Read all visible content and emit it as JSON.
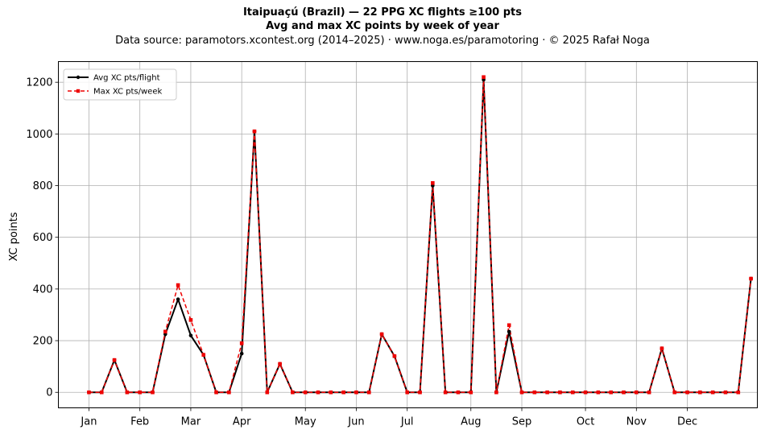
{
  "title_line1": "Itaipuaçú (Brazil)  —  22 PPG XC flights ≥100 pts",
  "title_line2": "Avg and max XC points by week of year",
  "title_line3": "Data source: paramotors.xcontest.org (2014–2025)  ·  www.noga.es/paramotoring  ·  © 2025 Rafał Noga",
  "chart_data": {
    "type": "line",
    "ylabel": "XC points",
    "xlabel": "",
    "ylim": [
      -60,
      1280
    ],
    "yticks": [
      0,
      200,
      400,
      600,
      800,
      1000,
      1200
    ],
    "xlim": [
      -1.4,
      53.5
    ],
    "month_ticks": [
      {
        "label": "Jan",
        "week": 1
      },
      {
        "label": "Feb",
        "week": 5
      },
      {
        "label": "Mar",
        "week": 9
      },
      {
        "label": "Apr",
        "week": 13
      },
      {
        "label": "May",
        "week": 18
      },
      {
        "label": "Jun",
        "week": 22
      },
      {
        "label": "Jul",
        "week": 26
      },
      {
        "label": "Aug",
        "week": 31
      },
      {
        "label": "Sep",
        "week": 35
      },
      {
        "label": "Oct",
        "week": 40
      },
      {
        "label": "Nov",
        "week": 44
      },
      {
        "label": "Dec",
        "week": 48
      }
    ],
    "grid": true,
    "legend_position": "top-left",
    "weeks": [
      1,
      2,
      3,
      4,
      5,
      6,
      7,
      8,
      9,
      10,
      11,
      12,
      13,
      14,
      15,
      16,
      17,
      18,
      19,
      20,
      21,
      22,
      23,
      24,
      25,
      26,
      27,
      28,
      29,
      30,
      31,
      32,
      33,
      34,
      35,
      36,
      37,
      38,
      39,
      40,
      41,
      42,
      43,
      44,
      45,
      46,
      47,
      48,
      49,
      50,
      51,
      52,
      53
    ],
    "series": [
      {
        "name": "Avg XC pts/flight",
        "color": "#000000",
        "style": "solid",
        "values": [
          0,
          0,
          125,
          0,
          0,
          0,
          225,
          360,
          220,
          145,
          0,
          0,
          150,
          1010,
          0,
          110,
          0,
          0,
          0,
          0,
          0,
          0,
          0,
          225,
          140,
          0,
          0,
          800,
          0,
          0,
          0,
          1210,
          0,
          235,
          0,
          0,
          0,
          0,
          0,
          0,
          0,
          0,
          0,
          0,
          0,
          170,
          0,
          0,
          0,
          0,
          0,
          0,
          440
        ]
      },
      {
        "name": "Max XC pts/week",
        "color": "#ee0000",
        "style": "dashed",
        "values": [
          0,
          0,
          125,
          0,
          0,
          0,
          235,
          415,
          280,
          145,
          0,
          0,
          190,
          1010,
          0,
          110,
          0,
          0,
          0,
          0,
          0,
          0,
          0,
          225,
          140,
          0,
          0,
          810,
          0,
          0,
          0,
          1220,
          0,
          260,
          0,
          0,
          0,
          0,
          0,
          0,
          0,
          0,
          0,
          0,
          0,
          170,
          0,
          0,
          0,
          0,
          0,
          0,
          440
        ]
      }
    ]
  }
}
